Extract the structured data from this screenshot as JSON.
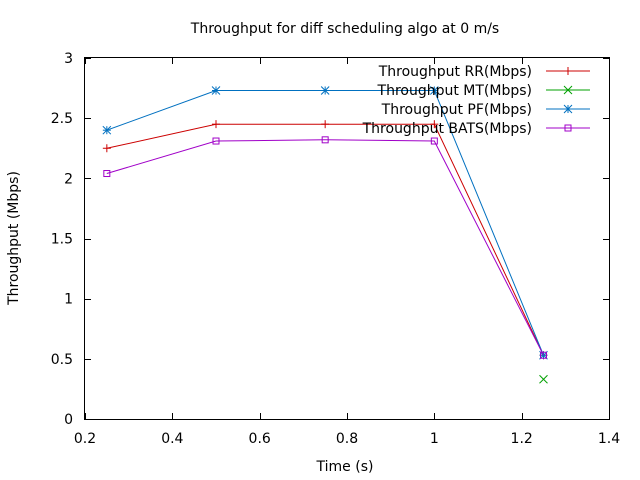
{
  "chart_data": {
    "type": "line",
    "title": "Throughput for diff scheduling algo at 0 m/s",
    "xlabel": "Time (s)",
    "ylabel": "Throughput (Mbps)",
    "xlim": [
      0.2,
      1.4
    ],
    "ylim": [
      0,
      3
    ],
    "xticks": [
      "0.2",
      "0.4",
      "0.6",
      "0.8",
      "1",
      "1.2",
      "1.4"
    ],
    "yticks": [
      "0",
      "0.5",
      "1",
      "1.5",
      "2",
      "2.5",
      "3"
    ],
    "grid": false,
    "legend_position": "top-right",
    "series": [
      {
        "name": "Throughput RR(Mbps)",
        "color": "#cc0000",
        "marker": "plus",
        "x": [
          0.25,
          0.5,
          0.75,
          1.0,
          1.25
        ],
        "y": [
          2.25,
          2.45,
          2.45,
          2.45,
          0.53
        ]
      },
      {
        "name": "Throughput MT(Mbps)",
        "color": "#00a000",
        "marker": "cross",
        "x": [
          1.25
        ],
        "y": [
          0.33
        ]
      },
      {
        "name": "Throughput PF(Mbps)",
        "color": "#0070c0",
        "marker": "star",
        "x": [
          0.25,
          0.5,
          0.75,
          1.0,
          1.25
        ],
        "y": [
          2.4,
          2.73,
          2.73,
          2.73,
          0.53
        ]
      },
      {
        "name": "Throughput BATS(Mbps)",
        "color": "#a000c8",
        "marker": "square",
        "x": [
          0.25,
          0.5,
          0.75,
          1.0,
          1.25
        ],
        "y": [
          2.04,
          2.31,
          2.32,
          2.31,
          0.53
        ]
      }
    ]
  }
}
